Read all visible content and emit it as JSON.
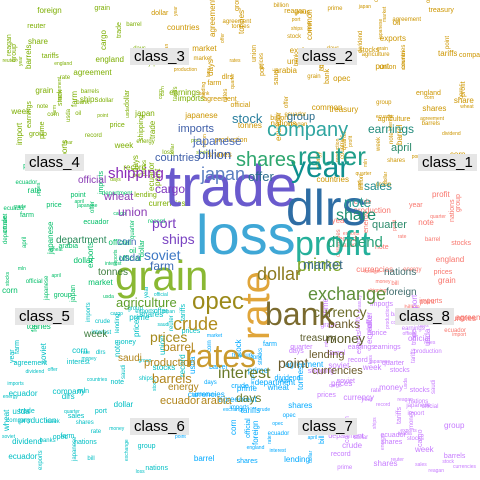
{
  "class_labels": [
    "class_1",
    "class_2",
    "class_3",
    "class_4",
    "class_5",
    "class_6",
    "class_7",
    "class_8"
  ],
  "colors": {
    "class_1": "#F8766D",
    "class_2": "#CD9600",
    "class_3": "#7CAE00",
    "class_4": "#00BE67",
    "class_5": "#00BFC4",
    "class_6": "#00A9FF",
    "class_7": "#C77CFF",
    "class_8": "#FF61CC",
    "major_trade": "#6A5ACD",
    "major_dlrs": "#2E6DA4",
    "major_loss": "#3FA7D6",
    "major_grain": "#8AB833",
    "major_rate": "#E0A53A",
    "major_rates": "#C99A2E",
    "major_year": "#0E8F8F",
    "major_reuter": "#1F9E89",
    "major_profit": "#25B09B",
    "major_bank": "#7A6A2E"
  },
  "words": [
    "trade",
    "dlrs",
    "loss",
    "grain",
    "rate",
    "rates",
    "year",
    "reuter",
    "profit",
    "bank",
    "opec",
    "company",
    "shares",
    "japan",
    "prime",
    "dividend",
    "dollar",
    "exchange",
    "market",
    "crude",
    "share",
    "note",
    "ships",
    "soviet",
    "interest",
    "prices",
    "sales",
    "shipping",
    "stock",
    "agriculture",
    "currency",
    "billion",
    "japanese",
    "port",
    "cargo",
    "bill",
    "week",
    "tonnes",
    "union",
    "department",
    "earnings",
    "april",
    "quarter",
    "record",
    "group",
    "common",
    "offer",
    "mln",
    "agreement",
    "reagan",
    "wheat",
    "corn",
    "usda",
    "farm",
    "import",
    "exports",
    "imports",
    "tariffs",
    "countries",
    "official",
    "money",
    "lending",
    "banks",
    "point",
    "currencies",
    "barrel",
    "oil",
    "barrels",
    "production",
    "energy",
    "saudi",
    "days",
    "ecuador",
    "arabia",
    "price",
    "stocks",
    "treasury",
    "england",
    "foreign",
    "nations"
  ]
}
